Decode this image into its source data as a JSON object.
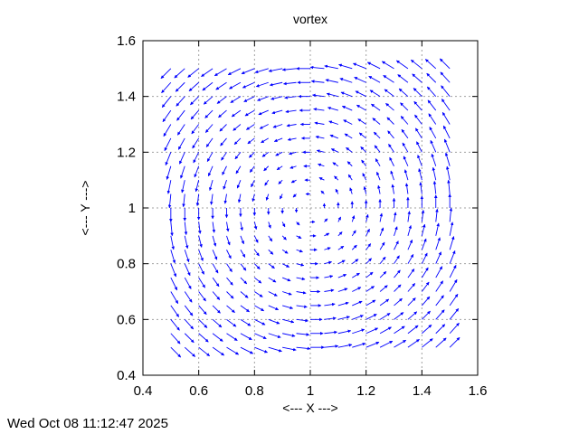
{
  "timestamp": "Wed Oct 08 11:12:47 2025",
  "chart_data": {
    "type": "vector-field",
    "title": "vortex",
    "xlabel": "<--- X --->",
    "ylabel": "<--- Y --->",
    "xlim": [
      0.4,
      1.6
    ],
    "ylim": [
      0.4,
      1.6
    ],
    "xticks": [
      "0.4",
      "0.6",
      "0.8",
      "1",
      "1.2",
      "1.4",
      "1.6"
    ],
    "yticks": [
      "0.4",
      "0.6",
      "0.8",
      "1",
      "1.2",
      "1.4",
      "1.6"
    ],
    "grid": true,
    "arrow_color": "#0000ff",
    "grid_color": "#a0a0a0",
    "field": {
      "center": [
        1.0,
        1.0
      ],
      "x_range": [
        0.5,
        1.5
      ],
      "y_range": [
        0.5,
        1.5
      ],
      "samples_per_axis": 21,
      "rotation": "counterclockwise",
      "max_arrow_length": 0.05
    }
  }
}
